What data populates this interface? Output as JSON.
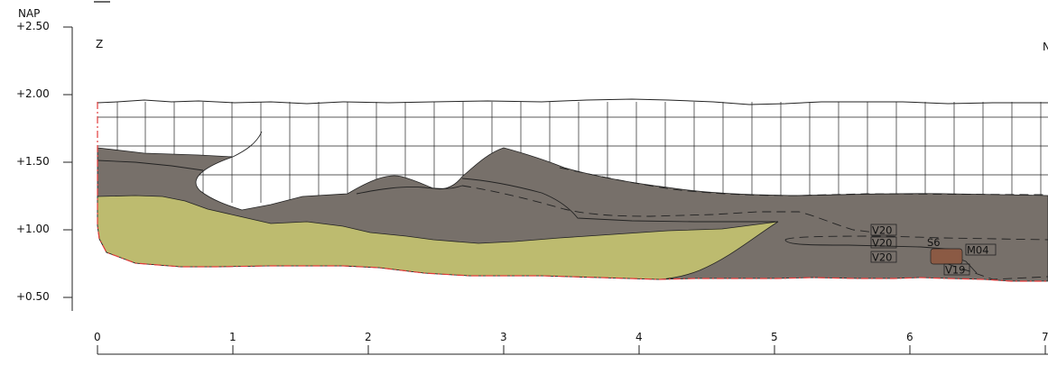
{
  "vertical_axis": {
    "unit": "NAP",
    "ticks": [
      "+2.50",
      "+2.00",
      "+1.50",
      "+1.00",
      "+0.50"
    ]
  },
  "horizontal_axis": {
    "ticks": [
      "0",
      "1",
      "2",
      "3",
      "4",
      "5",
      "6",
      "7"
    ]
  },
  "orientation": {
    "left": "Z",
    "right": "N"
  },
  "layer_tags": {
    "v20_a": "V20",
    "v20_b": "V20",
    "v20_c": "V20",
    "s6": "S6",
    "m04": "M04",
    "v19": "V19"
  },
  "colors": {
    "fill_dark": "#77706a",
    "fill_sand": "#bdbb6f",
    "fill_find": "#8b5a44",
    "boundary": "#e23b3b",
    "grid": "#222222"
  }
}
